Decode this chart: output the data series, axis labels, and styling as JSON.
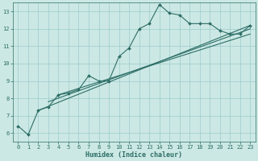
{
  "title": "",
  "xlabel": "Humidex (Indice chaleur)",
  "ylabel": "",
  "bg_color": "#cce8e4",
  "grid_color": "#99cccc",
  "line_color": "#2d6e66",
  "marker_color": "#2d6e66",
  "xlim": [
    -0.5,
    23.5
  ],
  "ylim": [
    5.5,
    13.5
  ],
  "xticks": [
    0,
    1,
    2,
    3,
    4,
    5,
    6,
    7,
    8,
    9,
    10,
    11,
    12,
    13,
    14,
    15,
    16,
    17,
    18,
    19,
    20,
    21,
    22,
    23
  ],
  "yticks": [
    6,
    7,
    8,
    9,
    10,
    11,
    12,
    13
  ],
  "series": [
    [
      0,
      6.4
    ],
    [
      1,
      5.9
    ],
    [
      2,
      7.3
    ],
    [
      3,
      7.5
    ],
    [
      4,
      8.2
    ],
    [
      5,
      8.3
    ],
    [
      6,
      8.5
    ],
    [
      7,
      9.3
    ],
    [
      8,
      9.0
    ],
    [
      9,
      9.0
    ],
    [
      10,
      10.4
    ],
    [
      11,
      10.9
    ],
    [
      12,
      12.0
    ],
    [
      13,
      12.3
    ],
    [
      14,
      13.4
    ],
    [
      15,
      12.9
    ],
    [
      16,
      12.8
    ],
    [
      17,
      12.3
    ],
    [
      18,
      12.3
    ],
    [
      19,
      12.3
    ],
    [
      20,
      11.9
    ],
    [
      21,
      11.7
    ],
    [
      22,
      11.7
    ],
    [
      23,
      12.2
    ]
  ],
  "line2": [
    [
      2,
      7.3
    ],
    [
      23,
      12.2
    ]
  ],
  "line3": [
    [
      3,
      7.8
    ],
    [
      23,
      12.0
    ]
  ],
  "line4": [
    [
      4,
      8.2
    ],
    [
      23,
      11.7
    ]
  ],
  "tick_fontsize": 5.0,
  "xlabel_fontsize": 6.0,
  "linewidth": 0.8,
  "markersize": 2.0
}
